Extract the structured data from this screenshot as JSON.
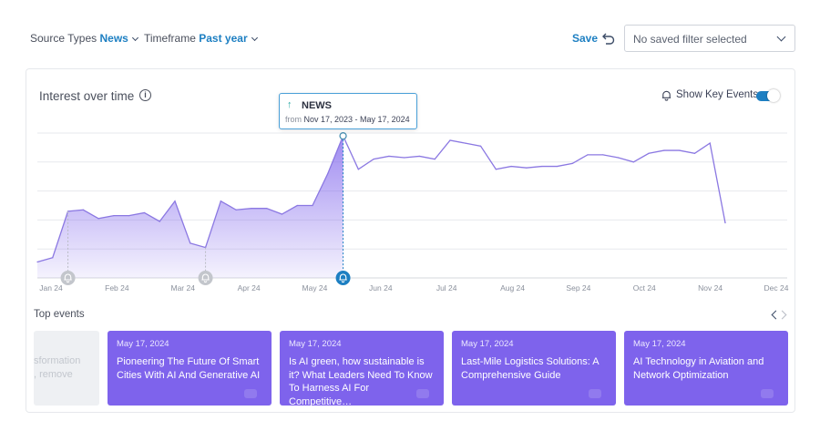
{
  "filters": {
    "source_label": "Source Types",
    "source_value": "News",
    "timeframe_label": "Timeframe",
    "timeframe_value": "Past year"
  },
  "toolbar": {
    "save_label": "Save",
    "saved_filter_placeholder": "No saved filter selected"
  },
  "chart_card": {
    "title": "Interest over time",
    "key_events_label": "Show Key Events",
    "key_events_on": true
  },
  "tooltip": {
    "series": "NEWS",
    "from_label": "from",
    "range": "Nov 17, 2023 - May 17, 2024"
  },
  "chart_data": {
    "type": "area",
    "x_ticks": [
      "Jan 24",
      "Feb 24",
      "Mar 24",
      "Apr 24",
      "May 24",
      "Jun 24",
      "Jul 24",
      "Aug 24",
      "Sep 24",
      "Oct 24",
      "Nov 24",
      "Dec 24"
    ],
    "ylim": [
      0,
      100
    ],
    "grid": true,
    "values": [
      11,
      14,
      46,
      47,
      41,
      43,
      43,
      45,
      39,
      53,
      24,
      21,
      53,
      47,
      48,
      48,
      44,
      50,
      50,
      72,
      98,
      75,
      82,
      84,
      83,
      84,
      82,
      95,
      93,
      91,
      75,
      77,
      76,
      77,
      77,
      79,
      85,
      85,
      83,
      80,
      86,
      88,
      88,
      86,
      93,
      38
    ],
    "highlight_index": 20,
    "highlight_range_start_index": 0,
    "key_event_indices": [
      2,
      11,
      20
    ],
    "colors": {
      "line": "#8b78e2",
      "fill": "#7e63ec",
      "highlight": "#1d7fc2"
    }
  },
  "top_events": {
    "label": "Top events",
    "partial_card": {
      "line1": "sformation",
      "line2": ", remove"
    },
    "cards": [
      {
        "date": "May 17, 2024",
        "title": "Pioneering The Future Of Smart Cities With AI And Generative AI"
      },
      {
        "date": "May 17, 2024",
        "title": "Is AI green, how sustainable is it? What Leaders Need To Know To Harness AI For Competitive…"
      },
      {
        "date": "May 17, 2024",
        "title": "Last-Mile Logistics Solutions: A Comprehensive Guide"
      },
      {
        "date": "May 17, 2024",
        "title": "AI Technology in Aviation and Network Optimization"
      }
    ]
  }
}
